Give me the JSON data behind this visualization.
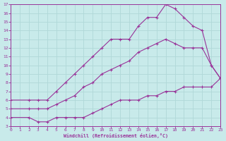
{
  "bg_color": "#c8eaea",
  "grid_color": "#b0d8d8",
  "line_color": "#993399",
  "xlabel": "Windchill (Refroidissement éolien,°C)",
  "xmin": 0,
  "xmax": 23,
  "ymin": 3,
  "ymax": 17,
  "xticks": [
    0,
    1,
    2,
    3,
    4,
    5,
    6,
    7,
    8,
    9,
    10,
    11,
    12,
    13,
    14,
    15,
    16,
    17,
    18,
    19,
    20,
    21,
    22,
    23
  ],
  "yticks": [
    3,
    4,
    5,
    6,
    7,
    8,
    9,
    10,
    11,
    12,
    13,
    14,
    15,
    16,
    17
  ],
  "line1_x": [
    0,
    2,
    3,
    4,
    5,
    6,
    7,
    8,
    9,
    10,
    11,
    12,
    13,
    14,
    15,
    16,
    17,
    18,
    19,
    20,
    21,
    22,
    23
  ],
  "line1_y": [
    6,
    6,
    6,
    6,
    7,
    8,
    9,
    10,
    11,
    12,
    13,
    13,
    13,
    14.5,
    15.5,
    15.5,
    17,
    16.5,
    15.5,
    14.5,
    14,
    10,
    8.5
  ],
  "line2_x": [
    0,
    2,
    3,
    4,
    5,
    6,
    7,
    8,
    9,
    10,
    11,
    12,
    13,
    14,
    15,
    16,
    17,
    18,
    19,
    20,
    21,
    22,
    23
  ],
  "line2_y": [
    5,
    5,
    5,
    5,
    5.5,
    6,
    6.5,
    7.5,
    8,
    9,
    9.5,
    10,
    10.5,
    11.5,
    12,
    12.5,
    13,
    12.5,
    12,
    12,
    12,
    10,
    8.5
  ],
  "line3_x": [
    0,
    2,
    3,
    4,
    5,
    6,
    7,
    8,
    9,
    10,
    11,
    12,
    13,
    14,
    15,
    16,
    17,
    18,
    19,
    20,
    21,
    22,
    23
  ],
  "line3_y": [
    4,
    4,
    3.5,
    3.5,
    4,
    4,
    4,
    4,
    4.5,
    5,
    5.5,
    6,
    6,
    6,
    6.5,
    6.5,
    7,
    7,
    7.5,
    7.5,
    7.5,
    7.5,
    8.5
  ]
}
